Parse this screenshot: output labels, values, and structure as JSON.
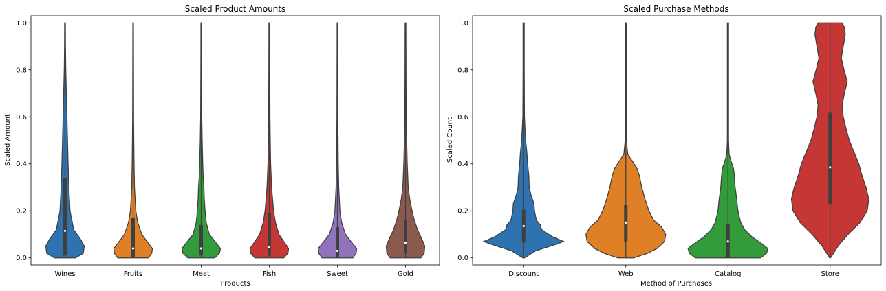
{
  "chart_data": [
    {
      "type": "violin",
      "title": "Scaled Product Amounts",
      "xlabel": "Products",
      "ylabel": "Scaled Amount",
      "ylim": [
        -0.03,
        1.03
      ],
      "yticks": [
        "0.0",
        "0.2",
        "0.4",
        "0.6",
        "0.8",
        "1.0"
      ],
      "grid": false,
      "categories": [
        "Wines",
        "Fruits",
        "Meat",
        "Fish",
        "Sweet",
        "Gold"
      ],
      "series": [
        {
          "category": "Wines",
          "color": "#2e72b0",
          "min": 0.0,
          "q1": 0.01,
          "median": 0.115,
          "q3": 0.34,
          "max": 1.0,
          "profile": [
            [
              0.0,
              0.55
            ],
            [
              0.02,
              0.95
            ],
            [
              0.05,
              1.0
            ],
            [
              0.08,
              0.8
            ],
            [
              0.12,
              0.45
            ],
            [
              0.2,
              0.26
            ],
            [
              0.3,
              0.2
            ],
            [
              0.4,
              0.16
            ],
            [
              0.5,
              0.13
            ],
            [
              0.6,
              0.1
            ],
            [
              0.7,
              0.07
            ],
            [
              0.8,
              0.04
            ],
            [
              0.9,
              0.025
            ],
            [
              1.0,
              0.02
            ]
          ]
        },
        {
          "category": "Fruits",
          "color": "#e08026",
          "min": 0.0,
          "q1": 0.0,
          "median": 0.04,
          "q3": 0.17,
          "max": 1.0,
          "profile": [
            [
              0.0,
              0.8
            ],
            [
              0.02,
              0.97
            ],
            [
              0.04,
              1.0
            ],
            [
              0.07,
              0.72
            ],
            [
              0.1,
              0.45
            ],
            [
              0.15,
              0.24
            ],
            [
              0.2,
              0.14
            ],
            [
              0.3,
              0.07
            ],
            [
              0.4,
              0.05
            ],
            [
              0.5,
              0.035
            ],
            [
              0.6,
              0.025
            ],
            [
              0.8,
              0.02
            ],
            [
              1.0,
              0.015
            ]
          ]
        },
        {
          "category": "Meat",
          "color": "#339c3a",
          "min": 0.0,
          "q1": 0.01,
          "median": 0.04,
          "q3": 0.14,
          "max": 1.0,
          "profile": [
            [
              0.0,
              0.7
            ],
            [
              0.02,
              0.95
            ],
            [
              0.04,
              1.0
            ],
            [
              0.07,
              0.72
            ],
            [
              0.1,
              0.42
            ],
            [
              0.15,
              0.26
            ],
            [
              0.2,
              0.2
            ],
            [
              0.25,
              0.16
            ],
            [
              0.3,
              0.14
            ],
            [
              0.35,
              0.1
            ],
            [
              0.4,
              0.08
            ],
            [
              0.5,
              0.05
            ],
            [
              0.6,
              0.03
            ],
            [
              0.8,
              0.02
            ],
            [
              1.0,
              0.015
            ]
          ]
        },
        {
          "category": "Fish",
          "color": "#c43734",
          "min": 0.0,
          "q1": 0.01,
          "median": 0.045,
          "q3": 0.19,
          "max": 1.0,
          "profile": [
            [
              0.0,
              0.75
            ],
            [
              0.02,
              0.97
            ],
            [
              0.04,
              1.0
            ],
            [
              0.07,
              0.75
            ],
            [
              0.1,
              0.5
            ],
            [
              0.15,
              0.32
            ],
            [
              0.2,
              0.22
            ],
            [
              0.3,
              0.12
            ],
            [
              0.4,
              0.07
            ],
            [
              0.5,
              0.05
            ],
            [
              0.6,
              0.035
            ],
            [
              0.8,
              0.025
            ],
            [
              1.0,
              0.02
            ]
          ]
        },
        {
          "category": "Sweet",
          "color": "#9172bc",
          "min": 0.0,
          "q1": 0.0,
          "median": 0.03,
          "q3": 0.13,
          "max": 1.0,
          "profile": [
            [
              0.0,
              0.8
            ],
            [
              0.02,
              0.97
            ],
            [
              0.04,
              1.0
            ],
            [
              0.07,
              0.7
            ],
            [
              0.1,
              0.42
            ],
            [
              0.15,
              0.22
            ],
            [
              0.2,
              0.13
            ],
            [
              0.3,
              0.07
            ],
            [
              0.4,
              0.045
            ],
            [
              0.5,
              0.035
            ],
            [
              0.6,
              0.025
            ],
            [
              0.8,
              0.02
            ],
            [
              1.0,
              0.015
            ]
          ]
        },
        {
          "category": "Gold",
          "color": "#8b5a4e",
          "min": 0.0,
          "q1": 0.02,
          "median": 0.065,
          "q3": 0.16,
          "max": 1.0,
          "profile": [
            [
              0.0,
              0.8
            ],
            [
              0.02,
              0.97
            ],
            [
              0.05,
              1.0
            ],
            [
              0.08,
              0.85
            ],
            [
              0.12,
              0.62
            ],
            [
              0.16,
              0.46
            ],
            [
              0.2,
              0.34
            ],
            [
              0.25,
              0.22
            ],
            [
              0.3,
              0.14
            ],
            [
              0.4,
              0.09
            ],
            [
              0.5,
              0.06
            ],
            [
              0.6,
              0.04
            ],
            [
              0.7,
              0.03
            ],
            [
              0.8,
              0.025
            ],
            [
              1.0,
              0.02
            ]
          ]
        }
      ]
    },
    {
      "type": "violin",
      "title": "Scaled Purchase Methods",
      "xlabel": "Method of Purchases",
      "ylabel": "Scaled Count",
      "ylim": [
        -0.03,
        1.03
      ],
      "yticks": [
        "0.0",
        "0.2",
        "0.4",
        "0.6",
        "0.8",
        "1.0"
      ],
      "grid": false,
      "categories": [
        "Discount",
        "Web",
        "Catalog",
        "Store"
      ],
      "series": [
        {
          "category": "Discount",
          "color": "#2e72b0",
          "min": 0.0,
          "q1": 0.065,
          "median": 0.135,
          "q3": 0.205,
          "max": 1.0,
          "profile": [
            [
              0.0,
              0.02
            ],
            [
              0.03,
              0.3
            ],
            [
              0.06,
              0.85
            ],
            [
              0.07,
              1.0
            ],
            [
              0.09,
              0.72
            ],
            [
              0.12,
              0.45
            ],
            [
              0.14,
              0.42
            ],
            [
              0.16,
              0.32
            ],
            [
              0.2,
              0.27
            ],
            [
              0.23,
              0.26
            ],
            [
              0.27,
              0.18
            ],
            [
              0.3,
              0.14
            ],
            [
              0.35,
              0.13
            ],
            [
              0.4,
              0.1
            ],
            [
              0.45,
              0.08
            ],
            [
              0.5,
              0.05
            ],
            [
              0.6,
              0.02
            ],
            [
              0.8,
              0.015
            ],
            [
              1.0,
              0.015
            ]
          ]
        },
        {
          "category": "Web",
          "color": "#e08026",
          "min": 0.0,
          "q1": 0.07,
          "median": 0.15,
          "q3": 0.225,
          "max": 1.0,
          "profile": [
            [
              0.0,
              0.2
            ],
            [
              0.02,
              0.55
            ],
            [
              0.04,
              0.78
            ],
            [
              0.07,
              0.97
            ],
            [
              0.1,
              1.0
            ],
            [
              0.13,
              0.9
            ],
            [
              0.16,
              0.7
            ],
            [
              0.2,
              0.58
            ],
            [
              0.25,
              0.48
            ],
            [
              0.3,
              0.4
            ],
            [
              0.35,
              0.34
            ],
            [
              0.38,
              0.28
            ],
            [
              0.41,
              0.17
            ],
            [
              0.44,
              0.05
            ],
            [
              0.5,
              0.015
            ],
            [
              1.0,
              0.015
            ]
          ]
        },
        {
          "category": "Catalog",
          "color": "#339c3a",
          "min": 0.0,
          "q1": 0.0,
          "median": 0.07,
          "q3": 0.145,
          "max": 1.0,
          "profile": [
            [
              0.0,
              0.82
            ],
            [
              0.02,
              0.97
            ],
            [
              0.04,
              1.0
            ],
            [
              0.06,
              0.85
            ],
            [
              0.09,
              0.6
            ],
            [
              0.12,
              0.42
            ],
            [
              0.15,
              0.32
            ],
            [
              0.2,
              0.25
            ],
            [
              0.25,
              0.22
            ],
            [
              0.3,
              0.18
            ],
            [
              0.35,
              0.16
            ],
            [
              0.38,
              0.14
            ],
            [
              0.41,
              0.08
            ],
            [
              0.44,
              0.03
            ],
            [
              0.5,
              0.015
            ],
            [
              1.0,
              0.015
            ]
          ]
        },
        {
          "category": "Store",
          "color": "#c43734",
          "min": 0.0,
          "q1": 0.23,
          "median": 0.385,
          "q3": 0.62,
          "max": 1.0,
          "profile": [
            [
              0.0,
              0.01
            ],
            [
              0.05,
              0.2
            ],
            [
              0.1,
              0.45
            ],
            [
              0.15,
              0.75
            ],
            [
              0.2,
              0.93
            ],
            [
              0.25,
              0.97
            ],
            [
              0.3,
              0.9
            ],
            [
              0.35,
              0.8
            ],
            [
              0.4,
              0.72
            ],
            [
              0.45,
              0.6
            ],
            [
              0.5,
              0.48
            ],
            [
              0.55,
              0.4
            ],
            [
              0.6,
              0.33
            ],
            [
              0.65,
              0.3
            ],
            [
              0.7,
              0.36
            ],
            [
              0.75,
              0.43
            ],
            [
              0.8,
              0.35
            ],
            [
              0.85,
              0.28
            ],
            [
              0.9,
              0.33
            ],
            [
              0.95,
              0.38
            ],
            [
              0.98,
              0.36
            ],
            [
              1.0,
              0.3
            ]
          ]
        }
      ]
    }
  ]
}
